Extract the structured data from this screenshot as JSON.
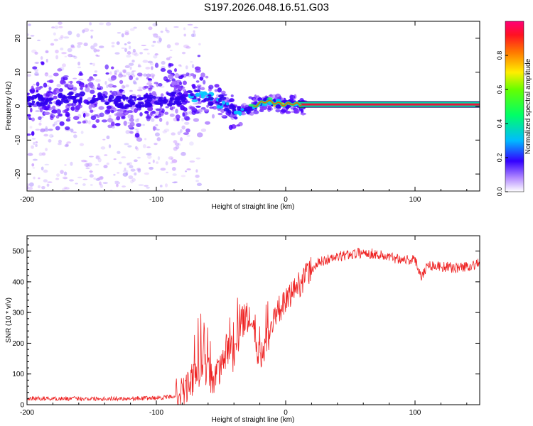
{
  "title": "S197.2026.048.16.51.G03",
  "colors": {
    "snr_line": "#ee2222",
    "spec_line": "#e8143c",
    "spec_halo": "#00ddaa",
    "axis": "#000000"
  },
  "chart_data": [
    {
      "type": "heatmap",
      "name": "spectrogram",
      "title": "",
      "xlabel": "Height of straight line (km)",
      "ylabel": "Frequency (Hz)",
      "xlim": [
        -200,
        150
      ],
      "ylim": [
        -25,
        25
      ],
      "xticks": [
        -200,
        -100,
        0,
        100
      ],
      "xtick_labels": [
        "-200",
        "-100",
        "0",
        "100"
      ],
      "yticks": [
        -20,
        -10,
        0,
        10,
        20
      ],
      "ytick_labels": [
        "-20",
        "-10",
        "0",
        "10",
        "20"
      ],
      "ridge": {
        "description": "dominant spectral line near 0.5 Hz",
        "x": [
          -200,
          -160,
          -120,
          -90,
          -70,
          -55,
          -45,
          -38,
          -30,
          -22,
          -15,
          -8,
          -3,
          0,
          5,
          10,
          15,
          60,
          110,
          150
        ],
        "y": [
          1.5,
          2.5,
          1.0,
          2.0,
          3.0,
          2.0,
          0.5,
          -2.0,
          -1.0,
          0.5,
          1.5,
          1.0,
          0.5,
          0.5,
          0.8,
          0.5,
          0.5,
          0.5,
          0.5,
          0.5
        ]
      },
      "colorbar": {
        "label": "Normalized spectral amplitude",
        "range": [
          0,
          1
        ],
        "ticks": [
          0.0,
          0.2,
          0.4,
          0.6,
          0.8
        ],
        "tick_labels": [
          "0.0",
          "0.2",
          "0.4",
          "0.6",
          "0.8"
        ]
      }
    },
    {
      "type": "line",
      "name": "snr",
      "title": "",
      "xlabel": "Height of straight line (km)",
      "ylabel": "SNR (10 * v/v)",
      "xlim": [
        -200,
        150
      ],
      "ylim": [
        0,
        550
      ],
      "xticks": [
        -200,
        -100,
        0,
        100
      ],
      "xtick_labels": [
        "-200",
        "-100",
        "0",
        "100"
      ],
      "yticks": [
        0,
        100,
        200,
        300,
        400,
        500
      ],
      "ytick_labels": [
        "0",
        "100",
        "200",
        "300",
        "400",
        "500"
      ],
      "series": [
        {
          "name": "SNR",
          "x": [
            -200,
            -180,
            -160,
            -140,
            -120,
            -100,
            -90,
            -80,
            -75,
            -70,
            -65,
            -60,
            -55,
            -50,
            -45,
            -40,
            -35,
            -30,
            -25,
            -20,
            -15,
            -10,
            -5,
            0,
            5,
            10,
            15,
            20,
            25,
            30,
            40,
            50,
            60,
            70,
            80,
            90,
            100,
            105,
            110,
            120,
            130,
            140,
            150
          ],
          "y": [
            20,
            20,
            20,
            20,
            20,
            22,
            25,
            35,
            60,
            90,
            120,
            110,
            70,
            130,
            180,
            150,
            260,
            280,
            240,
            140,
            200,
            260,
            310,
            330,
            370,
            390,
            420,
            440,
            460,
            470,
            480,
            490,
            495,
            490,
            480,
            475,
            470,
            420,
            455,
            450,
            445,
            450,
            460
          ]
        }
      ]
    }
  ]
}
